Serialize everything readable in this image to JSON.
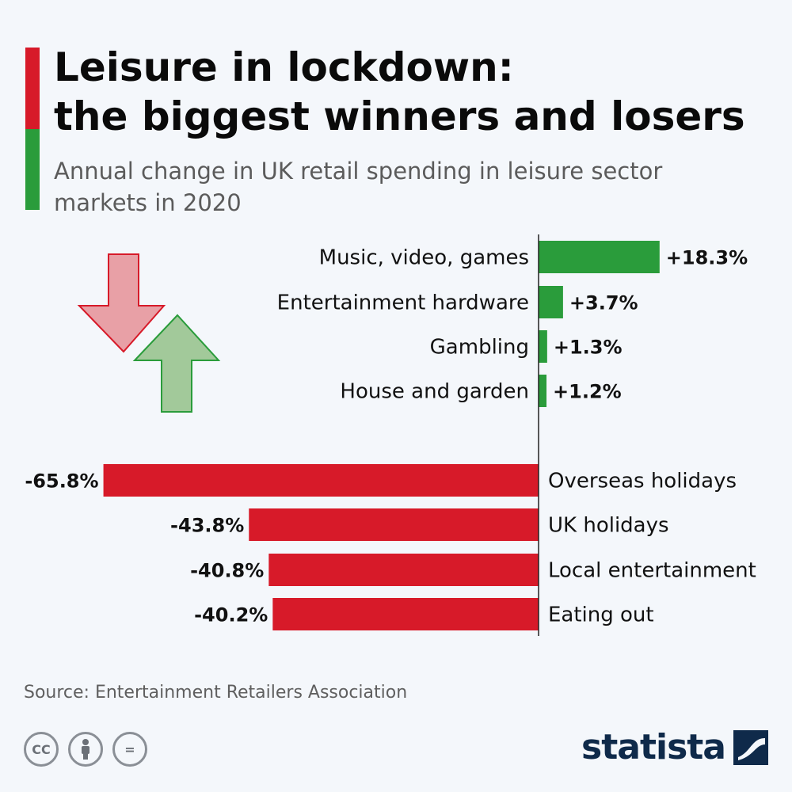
{
  "header": {
    "title_line1": "Leisure in lockdown:",
    "title_line2": "the biggest winners and losers",
    "subtitle": "Annual change in UK retail spending in leisure sector markets in 2020"
  },
  "colors": {
    "positive": "#2a9c3b",
    "negative": "#d71a29",
    "accent_top": "#d71a29",
    "accent_bottom": "#2a9c3b",
    "brand": "#0f2a4a"
  },
  "chart_data": {
    "type": "bar",
    "orientation": "horizontal",
    "categories": [
      "Music, video, games",
      "Entertainment hardware",
      "Gambling",
      "House and garden",
      "Overseas holidays",
      "UK holidays",
      "Local entertainment",
      "Eating out"
    ],
    "values": [
      18.3,
      3.7,
      1.3,
      1.2,
      -65.8,
      -43.8,
      -40.8,
      -40.2
    ],
    "value_labels": [
      "+18.3%",
      "+3.7%",
      "+1.3%",
      "+1.2%",
      "-65.8%",
      "-43.8%",
      "-40.8%",
      "-40.2%"
    ],
    "unit": "%"
  },
  "icons": {
    "down_arrow": "arrow-down-icon",
    "up_arrow": "arrow-up-icon",
    "cc": "CC",
    "by": "person-icon",
    "nd": "="
  },
  "footer": {
    "source": "Source: Entertainment Retailers Association",
    "brand": "statista"
  }
}
